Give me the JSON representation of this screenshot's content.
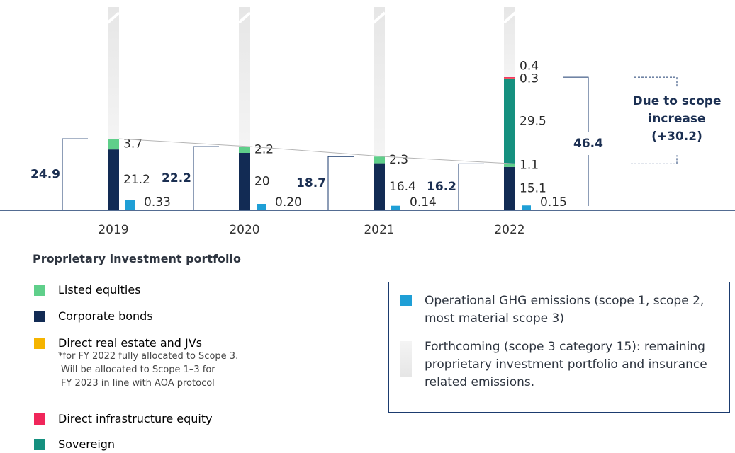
{
  "chart_data": {
    "type": "bar",
    "categories": [
      "2019",
      "2020",
      "2021",
      "2022"
    ],
    "series": [
      {
        "name": "Listed equities",
        "color": "#5fcf8a",
        "values": [
          3.7,
          2.2,
          2.3,
          1.1
        ]
      },
      {
        "name": "Corporate bonds",
        "color": "#122b54",
        "values": [
          21.2,
          20,
          16.4,
          15.1
        ]
      },
      {
        "name": "Direct real estate and JVs",
        "color": "#f5b400",
        "values": [
          null,
          null,
          null,
          0.3
        ]
      },
      {
        "name": "Direct infrastructure equity",
        "color": "#f0265a",
        "values": [
          null,
          null,
          null,
          0.4
        ]
      },
      {
        "name": "Sovereign",
        "color": "#15907f",
        "values": [
          null,
          null,
          null,
          29.5
        ]
      }
    ],
    "footnote": [
      "*for FY 2022 fully allocated to Scope 3.",
      "Will be allocated to Scope 1–3 for",
      "FY 2023 in line with AOA protocol"
    ],
    "legend_title": "Proprietary investment portfolio",
    "operational": {
      "name": "Operational GHG emissions (scope 1, scope 2, most material scope 3)",
      "color": "#1f9fd6",
      "values": [
        0.33,
        0.2,
        0.14,
        0.15
      ],
      "value_labels": [
        "0.33",
        "0.20",
        "0.14",
        "0.15"
      ]
    },
    "forthcoming": {
      "name": "Forthcoming (scope 3 category 15): remaining proprietary investment portfolio and insurance related emissions.",
      "color": "#e6e6e6"
    },
    "totals": [
      24.9,
      22.2,
      18.7,
      16.2
    ],
    "scope_total": 46.4,
    "annotation": [
      "Due to scope",
      "increase",
      "(+30.2)"
    ]
  }
}
